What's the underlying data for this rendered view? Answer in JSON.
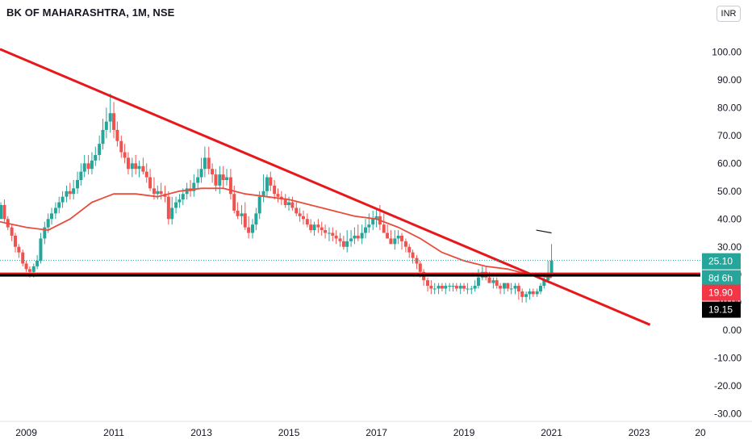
{
  "header": {
    "symbol_title": "BK OF MAHARASHTRA, 1M, NSE",
    "currency_button": "INR"
  },
  "colors": {
    "bull": "#26a69a",
    "bear": "#ef5350",
    "trendline": "#e8171b",
    "moving_average": "#e84c3d",
    "support_line": "#000000",
    "last_price_badge": "#26a69a",
    "red_badge": "#f23645",
    "black_badge": "#000000"
  },
  "chart_data": {
    "type": "candlestick",
    "title": "BK OF MAHARASHTRA, 1M, NSE",
    "currency": "INR",
    "yticks": [
      "-30.00",
      "-20.00",
      "-10.00",
      "0.00",
      "10.00",
      "20.00",
      "30.00",
      "40.00",
      "50.00",
      "60.00",
      "70.00",
      "80.00",
      "90.00",
      "100.00"
    ],
    "xticks": [
      "2009",
      "2011",
      "2013",
      "2015",
      "2017",
      "2019",
      "2021",
      "2023",
      "20"
    ],
    "ylim": [
      -33,
      112
    ],
    "xlim": [
      2008.4,
      2024.4
    ],
    "grid": false,
    "price_badges": [
      {
        "label": "25.10",
        "color": "last_price"
      },
      {
        "label": "8d 6h",
        "color": "last_price"
      },
      {
        "label": "19.90",
        "color": "red"
      },
      {
        "label": "19.15",
        "color": "black"
      }
    ],
    "last_price": 25.1,
    "support_level": 19.9,
    "trendline": {
      "x": [
        2008.4,
        2023.25
      ],
      "y": [
        101,
        2
      ]
    },
    "short_segment": {
      "x": [
        2020.65,
        2021.0
      ],
      "y": [
        36,
        35
      ]
    },
    "moving_average": {
      "x": [
        2008.4,
        2009.0,
        2009.5,
        2010.0,
        2010.5,
        2011.0,
        2011.5,
        2012.0,
        2012.5,
        2013.0,
        2013.5,
        2014.0,
        2014.5,
        2015.0,
        2015.5,
        2016.0,
        2016.5,
        2017.0,
        2017.5,
        2018.0,
        2018.5,
        2019.0,
        2019.5,
        2020.0,
        2020.5,
        2021.0
      ],
      "y": [
        39,
        37,
        36,
        40,
        46,
        49,
        49,
        48,
        50,
        51,
        51,
        49,
        48,
        47,
        45,
        43,
        41,
        40,
        37,
        33,
        28,
        25,
        23,
        22,
        20,
        19
      ]
    },
    "candles": {
      "t": [
        2008.42,
        2008.5,
        2008.58,
        2008.67,
        2008.75,
        2008.83,
        2008.92,
        2009.0,
        2009.08,
        2009.17,
        2009.25,
        2009.33,
        2009.42,
        2009.5,
        2009.58,
        2009.67,
        2009.75,
        2009.83,
        2009.92,
        2010.0,
        2010.08,
        2010.17,
        2010.25,
        2010.33,
        2010.42,
        2010.5,
        2010.58,
        2010.67,
        2010.75,
        2010.83,
        2010.92,
        2011.0,
        2011.08,
        2011.17,
        2011.25,
        2011.33,
        2011.42,
        2011.5,
        2011.58,
        2011.67,
        2011.75,
        2011.83,
        2011.92,
        2012.0,
        2012.08,
        2012.17,
        2012.25,
        2012.33,
        2012.42,
        2012.5,
        2012.58,
        2012.67,
        2012.75,
        2012.83,
        2012.92,
        2013.0,
        2013.08,
        2013.17,
        2013.25,
        2013.33,
        2013.42,
        2013.5,
        2013.58,
        2013.67,
        2013.75,
        2013.83,
        2013.92,
        2014.0,
        2014.08,
        2014.17,
        2014.25,
        2014.33,
        2014.42,
        2014.5,
        2014.58,
        2014.67,
        2014.75,
        2014.83,
        2014.92,
        2015.0,
        2015.08,
        2015.17,
        2015.25,
        2015.33,
        2015.42,
        2015.5,
        2015.58,
        2015.67,
        2015.75,
        2015.83,
        2015.92,
        2016.0,
        2016.08,
        2016.17,
        2016.25,
        2016.33,
        2016.42,
        2016.5,
        2016.58,
        2016.67,
        2016.75,
        2016.83,
        2016.92,
        2017.0,
        2017.08,
        2017.17,
        2017.25,
        2017.33,
        2017.42,
        2017.5,
        2017.58,
        2017.67,
        2017.75,
        2017.83,
        2017.92,
        2018.0,
        2018.08,
        2018.17,
        2018.25,
        2018.33,
        2018.42,
        2018.5,
        2018.58,
        2018.67,
        2018.75,
        2018.83,
        2018.92,
        2019.0,
        2019.08,
        2019.17,
        2019.25,
        2019.33,
        2019.42,
        2019.5,
        2019.58,
        2019.67,
        2019.75,
        2019.83,
        2019.92,
        2020.0,
        2020.08,
        2020.17,
        2020.25,
        2020.33,
        2020.42,
        2020.5,
        2020.58,
        2020.67,
        2020.75,
        2020.83,
        2020.92,
        2021.0,
        2021.08
      ],
      "o": [
        40,
        45,
        40,
        37,
        34,
        30,
        28,
        24,
        22,
        21,
        23,
        25,
        33,
        37,
        40,
        42,
        44,
        46,
        48,
        50,
        49,
        51,
        54,
        57,
        60,
        58,
        61,
        63,
        67,
        72,
        75,
        78,
        72,
        68,
        64,
        62,
        58,
        60,
        58,
        59,
        57,
        55,
        51,
        49,
        50,
        49,
        48,
        40,
        44,
        46,
        47,
        49,
        51,
        50,
        53,
        55,
        58,
        62,
        58,
        56,
        52,
        56,
        54,
        55,
        49,
        43,
        41,
        42,
        37,
        35,
        38,
        42,
        48,
        50,
        55,
        52,
        49,
        48,
        47,
        45,
        46,
        44,
        42,
        41,
        40,
        38,
        36,
        38,
        37,
        36,
        35,
        35,
        34,
        33,
        32,
        30,
        32,
        33,
        34,
        33,
        35,
        37,
        38,
        40,
        41,
        38,
        35,
        33,
        31,
        33,
        34,
        32,
        30,
        28,
        26,
        24,
        21,
        18,
        16,
        15,
        15,
        16,
        15,
        16,
        16,
        16,
        15,
        16,
        15,
        15,
        15,
        16,
        19,
        21,
        19,
        17,
        18,
        16,
        15,
        17,
        15,
        15,
        16,
        14,
        12,
        13,
        14,
        13,
        14,
        16,
        18,
        20
      ],
      "h": [
        46,
        47,
        41,
        38,
        35,
        31,
        29,
        25,
        23,
        24,
        27,
        35,
        39,
        42,
        44,
        46,
        48,
        50,
        52,
        53,
        54,
        57,
        60,
        63,
        63,
        64,
        66,
        70,
        76,
        80,
        85,
        82,
        75,
        70,
        67,
        64,
        62,
        63,
        61,
        62,
        60,
        58,
        55,
        52,
        53,
        52,
        50,
        48,
        48,
        49,
        51,
        53,
        54,
        56,
        58,
        62,
        66,
        66,
        60,
        58,
        59,
        59,
        58,
        58,
        52,
        46,
        45,
        46,
        41,
        40,
        44,
        50,
        56,
        56,
        57,
        54,
        51,
        50,
        49,
        48,
        48,
        46,
        44,
        43,
        42,
        40,
        39,
        40,
        39,
        38,
        37,
        37,
        36,
        35,
        34,
        36,
        36,
        37,
        38,
        38,
        40,
        42,
        43,
        44,
        45,
        42,
        38,
        36,
        36,
        36,
        35,
        33,
        31,
        29,
        27,
        25,
        22,
        19,
        18,
        17,
        17,
        17,
        17,
        17,
        17,
        17,
        17,
        17,
        17,
        16,
        18,
        22,
        23,
        23,
        21,
        19,
        19,
        17,
        17,
        17,
        17,
        17,
        17,
        15,
        14,
        15,
        15,
        15,
        17,
        19,
        25,
        31
      ],
      "l": [
        40,
        39,
        36,
        32,
        28,
        26,
        23,
        21,
        19,
        19,
        22,
        24,
        31,
        35,
        38,
        40,
        42,
        44,
        46,
        47,
        47,
        49,
        52,
        55,
        56,
        56,
        59,
        61,
        65,
        69,
        71,
        69,
        66,
        62,
        60,
        56,
        55,
        56,
        55,
        56,
        53,
        50,
        47,
        47,
        47,
        46,
        38,
        38,
        42,
        44,
        45,
        47,
        48,
        48,
        51,
        53,
        55,
        56,
        53,
        50,
        49,
        51,
        52,
        47,
        42,
        40,
        38,
        36,
        33,
        33,
        36,
        40,
        46,
        48,
        50,
        47,
        46,
        45,
        44,
        43,
        43,
        41,
        39,
        38,
        37,
        35,
        34,
        35,
        34,
        33,
        32,
        32,
        31,
        30,
        29,
        28,
        30,
        31,
        32,
        31,
        33,
        35,
        36,
        37,
        36,
        35,
        33,
        31,
        29,
        31,
        29,
        28,
        26,
        24,
        22,
        19,
        16,
        14,
        13,
        13,
        13,
        14,
        13,
        14,
        14,
        14,
        13,
        14,
        13,
        13,
        14,
        15,
        18,
        18,
        17,
        15,
        15,
        13,
        13,
        14,
        13,
        13,
        11,
        10,
        10,
        11,
        12,
        12,
        13,
        15,
        17,
        19
      ],
      "c": [
        45,
        40,
        37,
        34,
        30,
        28,
        24,
        22,
        21,
        23,
        25,
        33,
        37,
        40,
        42,
        44,
        46,
        48,
        50,
        49,
        51,
        54,
        57,
        60,
        58,
        61,
        63,
        67,
        72,
        75,
        78,
        72,
        68,
        64,
        62,
        58,
        60,
        58,
        59,
        57,
        55,
        51,
        49,
        50,
        49,
        48,
        40,
        44,
        46,
        47,
        49,
        51,
        50,
        53,
        55,
        58,
        62,
        58,
        56,
        52,
        56,
        54,
        55,
        49,
        43,
        41,
        42,
        37,
        35,
        38,
        42,
        48,
        50,
        55,
        52,
        49,
        48,
        47,
        45,
        46,
        44,
        42,
        41,
        40,
        38,
        36,
        38,
        37,
        36,
        35,
        35,
        34,
        33,
        32,
        30,
        32,
        33,
        34,
        33,
        35,
        37,
        38,
        40,
        41,
        38,
        35,
        33,
        31,
        33,
        34,
        32,
        30,
        28,
        26,
        24,
        21,
        18,
        16,
        15,
        15,
        16,
        15,
        16,
        16,
        16,
        15,
        16,
        15,
        15,
        15,
        16,
        19,
        21,
        19,
        17,
        18,
        16,
        15,
        17,
        15,
        15,
        16,
        14,
        12,
        13,
        14,
        13,
        14,
        16,
        18,
        20,
        25
      ]
    }
  }
}
